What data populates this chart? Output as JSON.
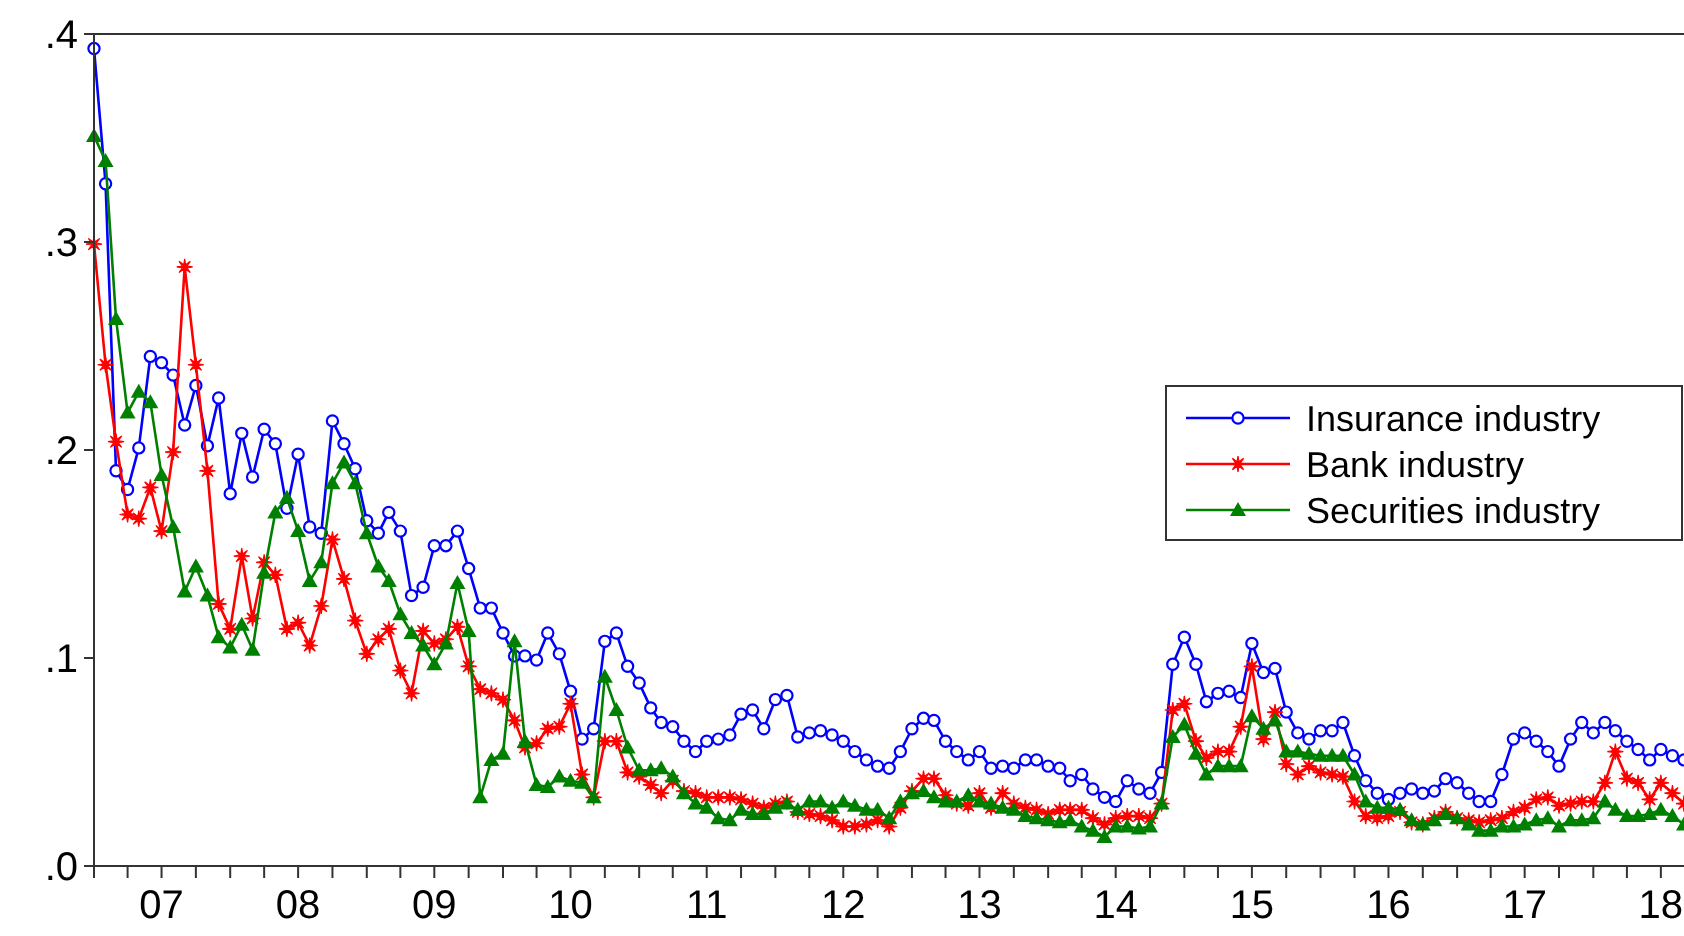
{
  "chart_data": {
    "type": "line",
    "x": [
      "2007-01",
      "2007-02",
      "2007-03",
      "2007-04",
      "2007-05",
      "2007-06",
      "2007-07",
      "2007-08",
      "2007-09",
      "2007-10",
      "2007-11",
      "2007-12",
      "2008-01",
      "2008-02",
      "2008-03",
      "2008-04",
      "2008-05",
      "2008-06",
      "2008-07",
      "2008-08",
      "2008-09",
      "2008-10",
      "2008-11",
      "2008-12",
      "2009-01",
      "2009-02",
      "2009-03",
      "2009-04",
      "2009-05",
      "2009-06",
      "2009-07",
      "2009-08",
      "2009-09",
      "2009-10",
      "2009-11",
      "2009-12",
      "2010-01",
      "2010-02",
      "2010-03",
      "2010-04",
      "2010-05",
      "2010-06",
      "2010-07",
      "2010-08",
      "2010-09",
      "2010-10",
      "2010-11",
      "2010-12",
      "2011-01",
      "2011-02",
      "2011-03",
      "2011-04",
      "2011-05",
      "2011-06",
      "2011-07",
      "2011-08",
      "2011-09",
      "2011-10",
      "2011-11",
      "2011-12",
      "2012-01",
      "2012-02",
      "2012-03",
      "2012-04",
      "2012-05",
      "2012-06",
      "2012-07",
      "2012-08",
      "2012-09",
      "2012-10",
      "2012-11",
      "2012-12",
      "2013-01",
      "2013-02",
      "2013-03",
      "2013-04",
      "2013-05",
      "2013-06",
      "2013-07",
      "2013-08",
      "2013-09",
      "2013-10",
      "2013-11",
      "2013-12",
      "2014-01",
      "2014-02",
      "2014-03",
      "2014-04",
      "2014-05",
      "2014-06",
      "2014-07",
      "2014-08",
      "2014-09",
      "2014-10",
      "2014-11",
      "2014-12",
      "2015-01",
      "2015-02",
      "2015-03",
      "2015-04",
      "2015-05",
      "2015-06",
      "2015-07",
      "2015-08",
      "2015-09",
      "2015-10",
      "2015-11",
      "2015-12",
      "2016-01",
      "2016-02",
      "2016-03",
      "2016-04",
      "2016-05",
      "2016-06",
      "2016-07",
      "2016-08",
      "2016-09",
      "2016-10",
      "2016-11",
      "2016-12",
      "2017-01",
      "2017-02",
      "2017-03",
      "2017-04",
      "2017-05",
      "2017-06",
      "2017-07",
      "2017-08",
      "2017-09",
      "2017-10",
      "2017-11",
      "2017-12",
      "2018-01",
      "2018-02",
      "2018-03",
      "2018-04",
      "2018-05",
      "2018-06",
      "2018-07",
      "2018-08",
      "2018-09"
    ],
    "series": [
      {
        "name": "Insurance industry",
        "color": "#0000ff",
        "marker": "circle",
        "values": [
          0.393,
          0.328,
          0.19,
          0.181,
          0.201,
          0.245,
          0.242,
          0.236,
          0.212,
          0.231,
          0.202,
          0.225,
          0.179,
          0.208,
          0.187,
          0.21,
          0.203,
          0.172,
          0.198,
          0.163,
          0.16,
          0.214,
          0.203,
          0.191,
          0.166,
          0.16,
          0.17,
          0.161,
          0.13,
          0.134,
          0.154,
          0.154,
          0.161,
          0.143,
          0.124,
          0.124,
          0.112,
          0.101,
          0.101,
          0.099,
          0.112,
          0.102,
          0.084,
          0.061,
          0.066,
          0.108,
          0.112,
          0.096,
          0.088,
          0.076,
          0.069,
          0.067,
          0.06,
          0.055,
          0.06,
          0.061,
          0.063,
          0.073,
          0.075,
          0.066,
          0.08,
          0.082,
          0.062,
          0.064,
          0.065,
          0.063,
          0.06,
          0.055,
          0.051,
          0.048,
          0.047,
          0.055,
          0.066,
          0.071,
          0.07,
          0.06,
          0.055,
          0.051,
          0.055,
          0.047,
          0.048,
          0.047,
          0.051,
          0.051,
          0.048,
          0.047,
          0.041,
          0.044,
          0.037,
          0.033,
          0.031,
          0.041,
          0.037,
          0.035,
          0.045,
          0.097,
          0.11,
          0.097,
          0.079,
          0.083,
          0.084,
          0.081,
          0.107,
          0.093,
          0.095,
          0.074,
          0.064,
          0.061,
          0.065,
          0.065,
          0.069,
          0.053,
          0.041,
          0.035,
          0.032,
          0.035,
          0.037,
          0.035,
          0.036,
          0.042,
          0.04,
          0.035,
          0.031,
          0.031,
          0.044,
          0.061,
          0.064,
          0.06,
          0.055,
          0.048,
          0.061,
          0.069,
          0.064,
          0.069,
          0.065,
          0.06,
          0.056,
          0.051,
          0.056,
          0.053,
          0.051
        ]
      },
      {
        "name": "Bank industry",
        "color": "#ff0000",
        "marker": "star",
        "values": [
          0.299,
          0.241,
          0.204,
          0.169,
          0.167,
          0.182,
          0.161,
          0.199,
          0.288,
          0.241,
          0.19,
          0.126,
          0.114,
          0.149,
          0.119,
          0.146,
          0.14,
          0.114,
          0.117,
          0.106,
          0.125,
          0.157,
          0.138,
          0.118,
          0.102,
          0.109,
          0.114,
          0.094,
          0.083,
          0.113,
          0.107,
          0.109,
          0.115,
          0.096,
          0.085,
          0.083,
          0.08,
          0.07,
          0.057,
          0.059,
          0.066,
          0.067,
          0.078,
          0.044,
          0.033,
          0.06,
          0.06,
          0.045,
          0.043,
          0.039,
          0.035,
          0.041,
          0.036,
          0.035,
          0.033,
          0.033,
          0.033,
          0.032,
          0.03,
          0.028,
          0.03,
          0.031,
          0.026,
          0.025,
          0.024,
          0.022,
          0.019,
          0.019,
          0.02,
          0.022,
          0.019,
          0.028,
          0.036,
          0.042,
          0.042,
          0.034,
          0.03,
          0.029,
          0.035,
          0.028,
          0.035,
          0.03,
          0.028,
          0.027,
          0.025,
          0.027,
          0.027,
          0.027,
          0.023,
          0.02,
          0.023,
          0.024,
          0.024,
          0.023,
          0.03,
          0.075,
          0.078,
          0.06,
          0.052,
          0.055,
          0.055,
          0.067,
          0.096,
          0.061,
          0.074,
          0.049,
          0.044,
          0.048,
          0.045,
          0.044,
          0.043,
          0.031,
          0.024,
          0.023,
          0.024,
          0.026,
          0.021,
          0.02,
          0.023,
          0.026,
          0.023,
          0.022,
          0.021,
          0.022,
          0.023,
          0.026,
          0.028,
          0.032,
          0.033,
          0.029,
          0.03,
          0.031,
          0.031,
          0.04,
          0.055,
          0.042,
          0.04,
          0.032,
          0.04,
          0.035,
          0.03
        ]
      },
      {
        "name": "Securities industry",
        "color": "#008000",
        "marker": "triangle",
        "values": [
          0.351,
          0.339,
          0.263,
          0.218,
          0.228,
          0.223,
          0.188,
          0.163,
          0.132,
          0.144,
          0.13,
          0.11,
          0.105,
          0.116,
          0.104,
          0.141,
          0.17,
          0.177,
          0.161,
          0.137,
          0.146,
          0.184,
          0.194,
          0.184,
          0.16,
          0.144,
          0.137,
          0.121,
          0.112,
          0.106,
          0.097,
          0.107,
          0.136,
          0.113,
          0.033,
          0.051,
          0.054,
          0.108,
          0.06,
          0.039,
          0.038,
          0.043,
          0.041,
          0.04,
          0.033,
          0.091,
          0.075,
          0.057,
          0.046,
          0.046,
          0.047,
          0.043,
          0.035,
          0.03,
          0.028,
          0.023,
          0.022,
          0.027,
          0.025,
          0.025,
          0.028,
          0.03,
          0.027,
          0.031,
          0.031,
          0.028,
          0.031,
          0.029,
          0.027,
          0.027,
          0.023,
          0.031,
          0.035,
          0.036,
          0.033,
          0.031,
          0.031,
          0.034,
          0.031,
          0.03,
          0.028,
          0.027,
          0.024,
          0.023,
          0.022,
          0.021,
          0.022,
          0.019,
          0.017,
          0.014,
          0.019,
          0.019,
          0.018,
          0.019,
          0.03,
          0.062,
          0.068,
          0.054,
          0.044,
          0.048,
          0.048,
          0.048,
          0.072,
          0.066,
          0.07,
          0.055,
          0.055,
          0.054,
          0.053,
          0.053,
          0.053,
          0.044,
          0.031,
          0.028,
          0.028,
          0.027,
          0.022,
          0.02,
          0.022,
          0.025,
          0.023,
          0.02,
          0.017,
          0.017,
          0.019,
          0.019,
          0.02,
          0.022,
          0.023,
          0.019,
          0.022,
          0.022,
          0.023,
          0.031,
          0.027,
          0.024,
          0.024,
          0.025,
          0.027,
          0.024,
          0.02
        ]
      }
    ],
    "xlim": [
      "2007-01",
      "2018-09"
    ],
    "xticks": [
      {
        "value": "2007-01",
        "label": null
      },
      {
        "value": "2007-04",
        "label": null
      },
      {
        "value": "2007-07",
        "label": "07"
      },
      {
        "value": "2007-10",
        "label": null
      },
      {
        "value": "2008-01",
        "label": null
      },
      {
        "value": "2008-04",
        "label": null
      },
      {
        "value": "2008-07",
        "label": "08"
      },
      {
        "value": "2008-10",
        "label": null
      },
      {
        "value": "2009-01",
        "label": null
      },
      {
        "value": "2009-04",
        "label": null
      },
      {
        "value": "2009-07",
        "label": "09"
      },
      {
        "value": "2009-10",
        "label": null
      },
      {
        "value": "2010-01",
        "label": null
      },
      {
        "value": "2010-04",
        "label": null
      },
      {
        "value": "2010-07",
        "label": "10"
      },
      {
        "value": "2010-10",
        "label": null
      },
      {
        "value": "2011-01",
        "label": null
      },
      {
        "value": "2011-04",
        "label": null
      },
      {
        "value": "2011-07",
        "label": "11"
      },
      {
        "value": "2011-10",
        "label": null
      },
      {
        "value": "2012-01",
        "label": null
      },
      {
        "value": "2012-04",
        "label": null
      },
      {
        "value": "2012-07",
        "label": "12"
      },
      {
        "value": "2012-10",
        "label": null
      },
      {
        "value": "2013-01",
        "label": null
      },
      {
        "value": "2013-04",
        "label": null
      },
      {
        "value": "2013-07",
        "label": "13"
      },
      {
        "value": "2013-10",
        "label": null
      },
      {
        "value": "2014-01",
        "label": null
      },
      {
        "value": "2014-04",
        "label": null
      },
      {
        "value": "2014-07",
        "label": "14"
      },
      {
        "value": "2014-10",
        "label": null
      },
      {
        "value": "2015-01",
        "label": null
      },
      {
        "value": "2015-04",
        "label": null
      },
      {
        "value": "2015-07",
        "label": "15"
      },
      {
        "value": "2015-10",
        "label": null
      },
      {
        "value": "2016-01",
        "label": null
      },
      {
        "value": "2016-04",
        "label": null
      },
      {
        "value": "2016-07",
        "label": "16"
      },
      {
        "value": "2016-10",
        "label": null
      },
      {
        "value": "2017-01",
        "label": null
      },
      {
        "value": "2017-04",
        "label": null
      },
      {
        "value": "2017-07",
        "label": "17"
      },
      {
        "value": "2017-10",
        "label": null
      },
      {
        "value": "2018-01",
        "label": null
      },
      {
        "value": "2018-04",
        "label": null
      },
      {
        "value": "2018-07",
        "label": "18"
      }
    ],
    "ylim": [
      0,
      0.4
    ],
    "yticks": [
      {
        "value": 0,
        "label": ".0"
      },
      {
        "value": 0.1,
        "label": ".1"
      },
      {
        "value": 0.2,
        "label": ".2"
      },
      {
        "value": 0.3,
        "label": ".3"
      },
      {
        "value": 0.4,
        "label": ".4"
      }
    ],
    "grid": false,
    "legend": "right",
    "line_style": "solid"
  }
}
